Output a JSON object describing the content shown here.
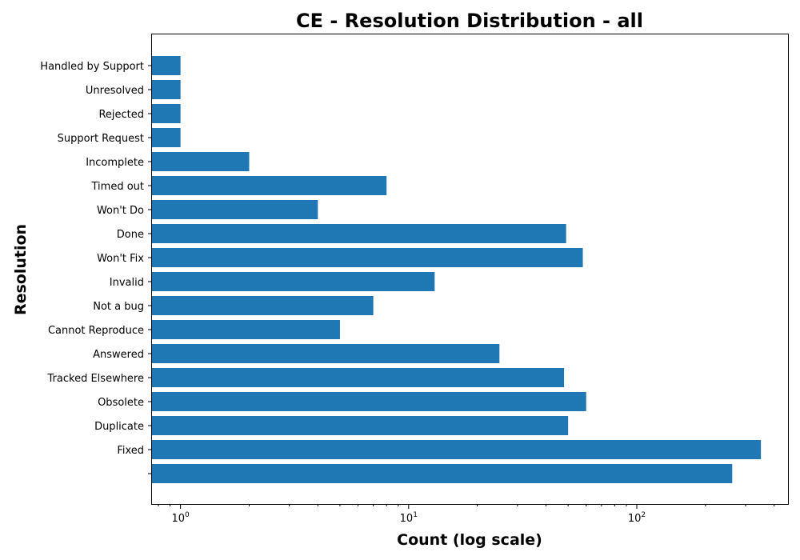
{
  "chart_data": {
    "type": "bar",
    "orientation": "horizontal",
    "title": "CE - Resolution Distribution - all",
    "xlabel": "Count (log scale)",
    "ylabel": "Resolution",
    "xscale": "log",
    "xlim": [
      0.75,
      460
    ],
    "x_ticks": [
      {
        "value": 1,
        "base": "10",
        "exp": "0"
      },
      {
        "value": 10,
        "base": "10",
        "exp": "1"
      },
      {
        "value": 100,
        "base": "10",
        "exp": "2"
      }
    ],
    "categories": [
      "",
      "Fixed",
      "Duplicate",
      "Obsolete",
      "Tracked Elsewhere",
      "Answered",
      "Cannot Reproduce",
      "Not a bug",
      "Invalid",
      "Won't Fix",
      "Done",
      "Won't Do",
      "Timed out",
      "Incomplete",
      "Support Request",
      "Rejected",
      "Unresolved",
      "Handled by Support"
    ],
    "values": [
      262,
      350,
      50,
      60,
      48,
      25,
      5,
      7,
      13,
      58,
      49,
      4,
      8,
      2,
      1,
      1,
      1,
      1
    ],
    "bar_color": "#1f77b4",
    "grid": false,
    "legend": "none"
  }
}
